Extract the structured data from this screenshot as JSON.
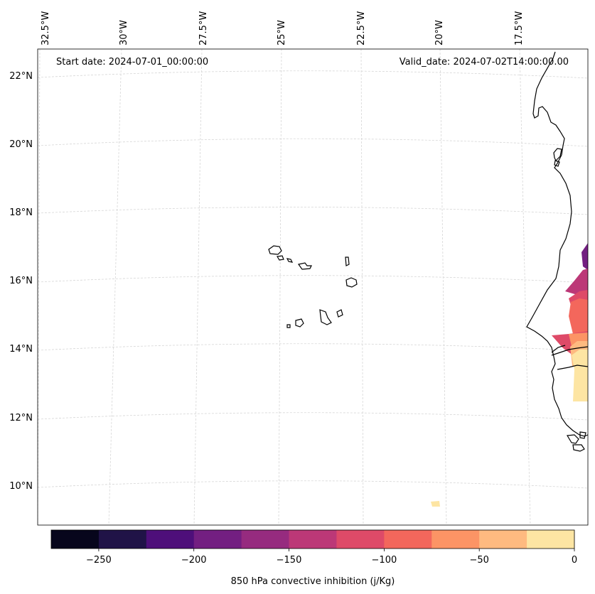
{
  "map": {
    "start_text": "Start date: 2024-07-01_00:00:00",
    "valid_text": "Valid_date: 2024-07-02T14:00:00.00",
    "lon_labels": [
      "32.5°W",
      "30°W",
      "27.5°W",
      "25°W",
      "22.5°W",
      "20°W",
      "17.5°W"
    ],
    "lat_labels": [
      "22°N",
      "20°N",
      "18°N",
      "16°N",
      "14°N",
      "12°N",
      "10°N"
    ]
  },
  "colorbar": {
    "label": "850 hPa convective inhibition (j/Kg)",
    "tick_labels": [
      "−250",
      "−200",
      "−150",
      "−100",
      "−50",
      "0"
    ],
    "colors": [
      "#07061c",
      "#201347",
      "#4e0f7a",
      "#731f81",
      "#962b7f",
      "#bc3877",
      "#de4a68",
      "#f3675c",
      "#fc9465",
      "#feba80",
      "#fde5a3"
    ]
  }
}
